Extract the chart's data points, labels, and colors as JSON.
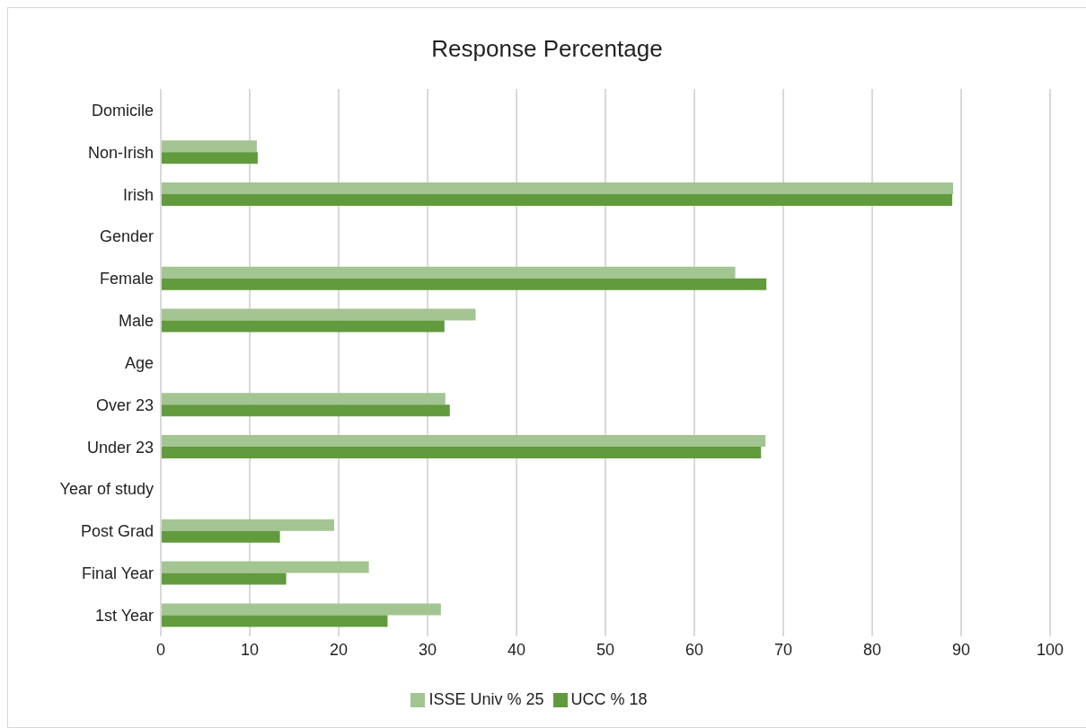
{
  "chart_data": {
    "type": "bar",
    "orientation": "horizontal",
    "title": "Response Percentage",
    "categories": [
      "Domicile",
      "Non-Irish",
      "Irish",
      "Gender",
      "Female",
      "Male",
      "Age",
      "Over 23",
      "Under 23",
      "Year of study",
      "Post Grad",
      "Final Year",
      "1st  Year"
    ],
    "series": [
      {
        "name": "ISSE Univ % 25",
        "color": "#a3c591",
        "values": [
          null,
          10.8,
          89.1,
          null,
          64.6,
          35.4,
          null,
          32.0,
          68.0,
          null,
          19.5,
          23.4,
          31.5
        ]
      },
      {
        "name": "UCC %  18",
        "color": "#629a3e",
        "values": [
          null,
          10.9,
          89.0,
          null,
          68.1,
          31.9,
          null,
          32.5,
          67.5,
          null,
          13.4,
          14.1,
          25.5
        ]
      }
    ],
    "xlim": [
      0,
      100
    ],
    "xticks": [
      0,
      10,
      20,
      30,
      40,
      50,
      60,
      70,
      80,
      90,
      100
    ],
    "grid": "x",
    "legend": "bottom"
  }
}
